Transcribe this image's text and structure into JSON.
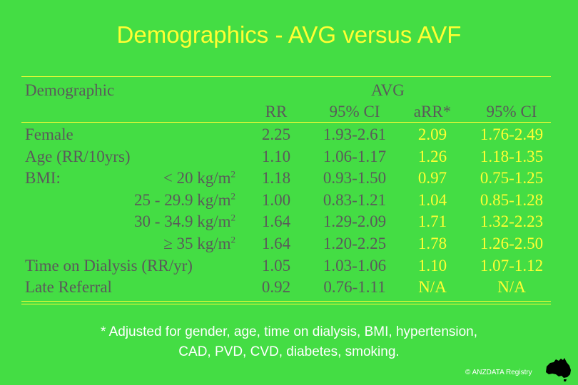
{
  "slide": {
    "title": "Demographics - AVG versus AVF",
    "footnote_line1": "* Adjusted for gender, age, time on dialysis, BMI, hypertension,",
    "footnote_line2": "CAD, PVD, CVD, diabetes, smoking.",
    "copyright": "© ANZDATA Registry",
    "logo_icon": "australia-map-icon"
  },
  "table": {
    "header_demographic": "Demographic",
    "header_group": "AVG",
    "col_rr": "RR",
    "col_ci1": "95% CI",
    "col_arr": "aRR*",
    "col_ci2": "95% CI",
    "rows": [
      {
        "label": "Female",
        "sub": "",
        "rr": "2.25",
        "ci1": "1.93-2.61",
        "arr": "2.09",
        "ci2": "1.76-2.49"
      },
      {
        "label": "Age (RR/10yrs)",
        "sub": "",
        "rr": "1.10",
        "ci1": "1.06-1.17",
        "arr": "1.26",
        "ci2": "1.18-1.35"
      },
      {
        "label": "BMI:",
        "sub": "< 20 kg/m2",
        "rr": "1.18",
        "ci1": "0.93-1.50",
        "arr": "0.97",
        "ci2": "0.75-1.25"
      },
      {
        "label": "",
        "sub": "25 - 29.9 kg/m2",
        "rr": "1.00",
        "ci1": "0.83-1.21",
        "arr": "1.04",
        "ci2": "0.85-1.28"
      },
      {
        "label": "",
        "sub": "30 - 34.9 kg/m2",
        "rr": "1.64",
        "ci1": "1.29-2.09",
        "arr": "1.71",
        "ci2": "1.32-2.23"
      },
      {
        "label": "",
        "sub": "≥ 35 kg/m2",
        "rr": "1.64",
        "ci1": "1.20-2.25",
        "arr": "1.78",
        "ci2": "1.26-2.50"
      },
      {
        "label": "Time on Dialysis (RR/yr)",
        "sub": "",
        "rr": "1.05",
        "ci1": "1.03-1.06",
        "arr": "1.10",
        "ci2": "1.07-1.12"
      },
      {
        "label": "Late Referral",
        "sub": "",
        "rr": "0.92",
        "ci1": "0.76-1.11",
        "arr": "N/A",
        "ci2": "N/A"
      }
    ]
  }
}
